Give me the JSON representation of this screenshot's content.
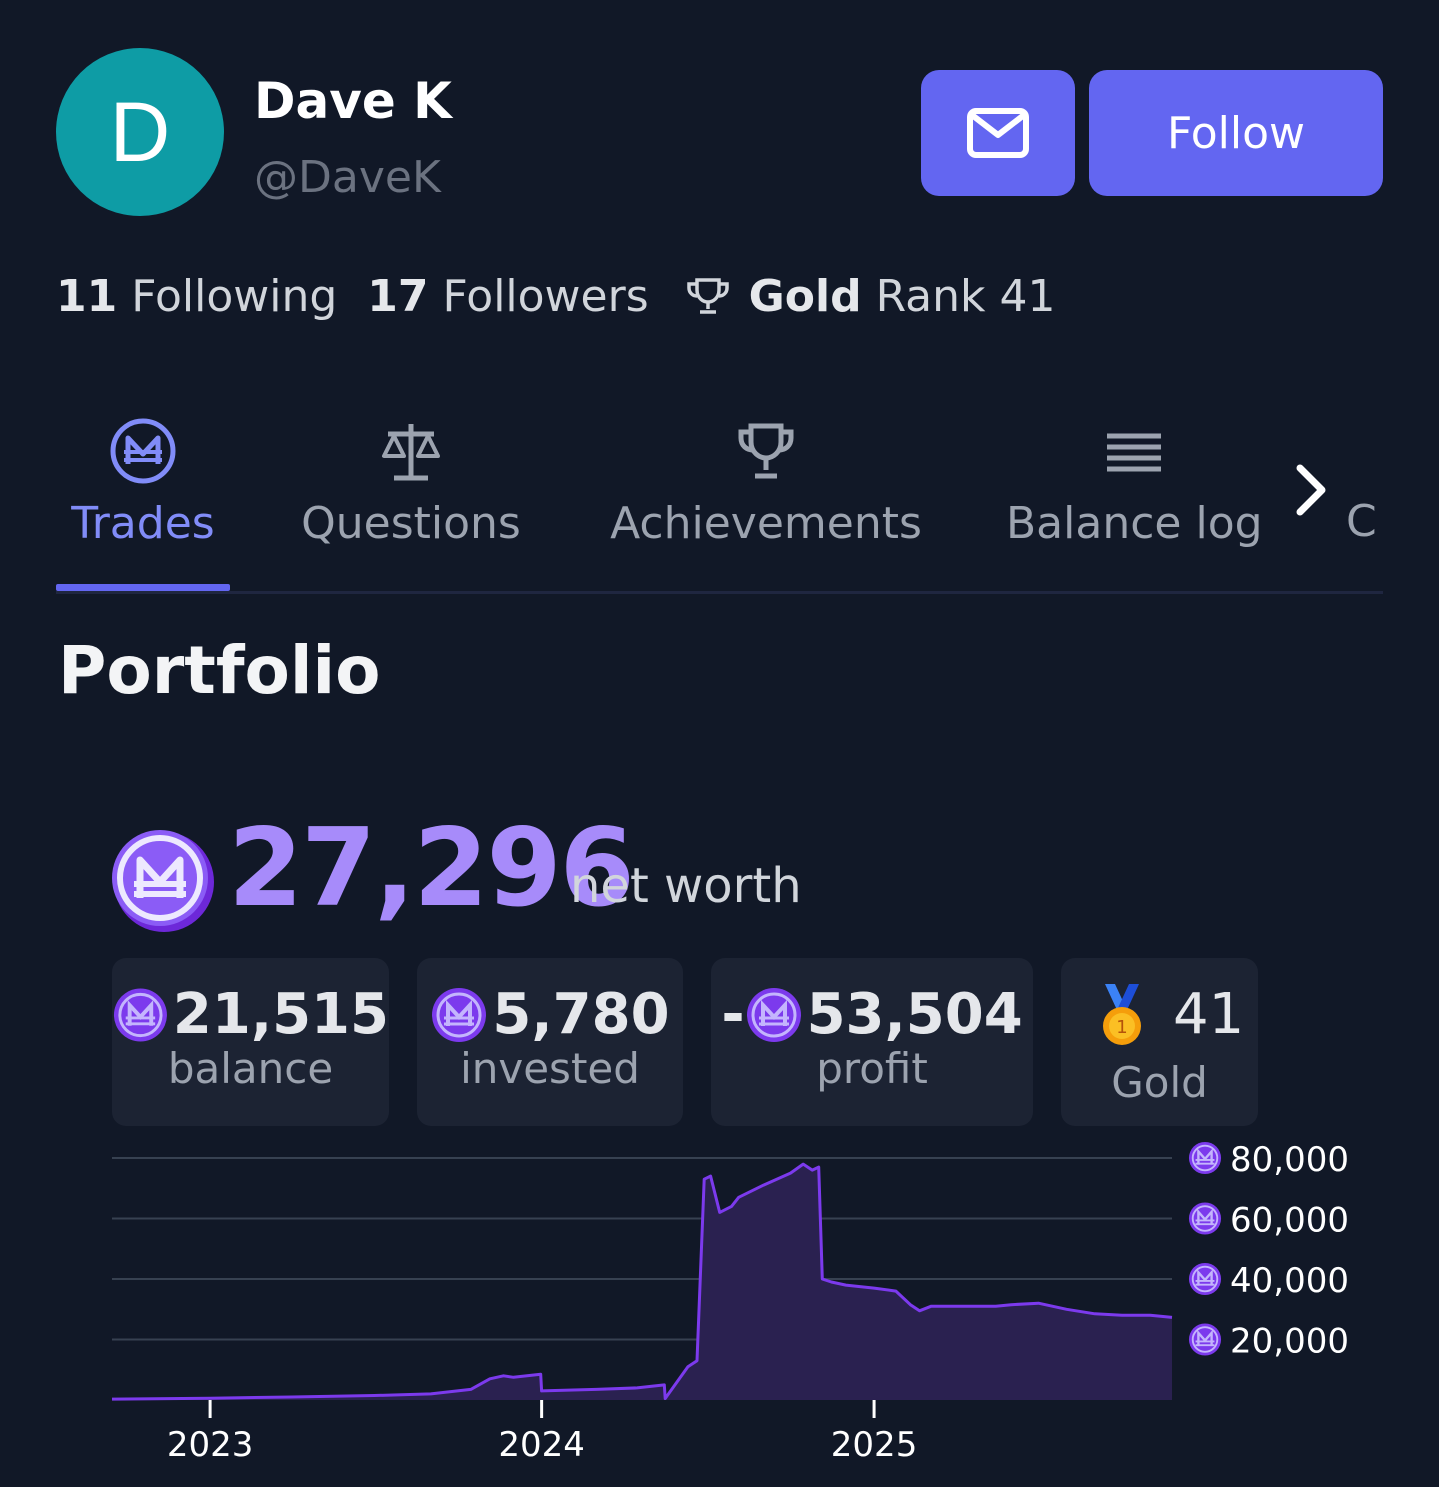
{
  "profile": {
    "avatar_letter": "D",
    "name": "Dave K",
    "handle": "@DaveK",
    "follow_label": "Follow",
    "message_icon": "mail-icon"
  },
  "stats": {
    "following_count": "11",
    "following_label": "Following",
    "followers_count": "17",
    "followers_label": "Followers",
    "league_tier": "Gold",
    "league_rank_text": "Rank 41"
  },
  "tabs": [
    {
      "label": "Trades",
      "icon": "mana-coin-icon",
      "active": true
    },
    {
      "label": "Questions",
      "icon": "scale-icon",
      "active": false
    },
    {
      "label": "Achievements",
      "icon": "trophy-icon",
      "active": false
    },
    {
      "label": "Balance log",
      "icon": "list-icon",
      "active": false
    },
    {
      "label": "C",
      "icon": "",
      "active": false
    }
  ],
  "portfolio": {
    "title": "Portfolio",
    "net_worth": "27,296",
    "net_worth_label": "net worth",
    "balance": "21,515",
    "balance_label": "balance",
    "invested": "5,780",
    "invested_label": "invested",
    "profit_sign": "-",
    "profit": "53,504",
    "profit_label": "profit",
    "league_rank": "41",
    "league_label": "Gold"
  },
  "colors": {
    "background": "#111827",
    "accent": "#6366f1",
    "mana_purple": "#a78bfa",
    "chart_line": "#7c3aed"
  },
  "chart_data": {
    "type": "area",
    "title": "",
    "xlabel": "",
    "ylabel": "",
    "x_tick_labels": [
      "2023",
      "2024",
      "2025"
    ],
    "y_tick_labels": [
      "20,000",
      "40,000",
      "60,000",
      "80,000"
    ],
    "ylim": [
      0,
      80000
    ],
    "grid": true,
    "series": [
      {
        "x": [
          "2022-09-15",
          "2023-01-01",
          "2023-04-01",
          "2023-07-01",
          "2023-09-01",
          "2023-10-15",
          "2023-11-05",
          "2023-11-20",
          "2023-12-01",
          "2023-12-31",
          "2024-01-01",
          "2024-03-01",
          "2024-04-15",
          "2024-05-15",
          "2024-05-16",
          "2024-06-10",
          "2024-06-20",
          "2024-06-28",
          "2024-07-05",
          "2024-07-15",
          "2024-07-28",
          "2024-08-05",
          "2024-09-01",
          "2024-10-01",
          "2024-10-15",
          "2024-10-25",
          "2024-11-01",
          "2024-11-05",
          "2024-11-15",
          "2024-12-01",
          "2025-01-01",
          "2025-01-25",
          "2025-02-10",
          "2025-02-20",
          "2025-03-05",
          "2025-04-01",
          "2025-05-15",
          "2025-06-01",
          "2025-07-01",
          "2025-08-01",
          "2025-09-01",
          "2025-10-01",
          "2025-11-01",
          "2025-11-25"
        ],
        "y": [
          300,
          600,
          1000,
          1500,
          2000,
          3500,
          7000,
          8000,
          7500,
          8500,
          3000,
          3500,
          4000,
          5000,
          500,
          11000,
          13000,
          73000,
          74000,
          62000,
          64000,
          67000,
          71000,
          75000,
          78000,
          76000,
          77000,
          40000,
          39000,
          38000,
          37000,
          36000,
          31500,
          29500,
          31000,
          31000,
          31000,
          31500,
          32000,
          30000,
          28500,
          28000,
          28000,
          27296
        ]
      }
    ]
  }
}
